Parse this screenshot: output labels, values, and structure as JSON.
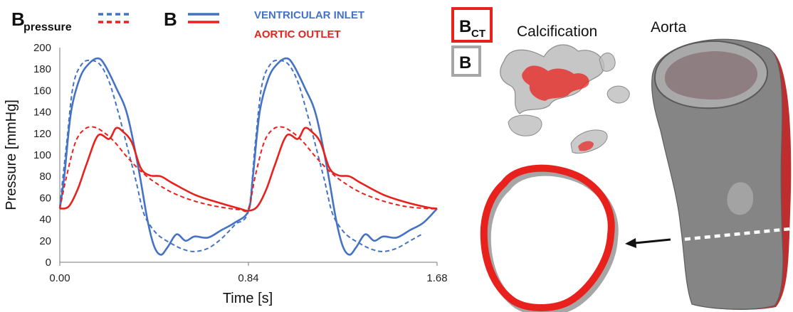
{
  "chart_data": {
    "type": "line",
    "xlabel": "Time [s]",
    "ylabel": "Pressure [mmHg]",
    "xlim": [
      0,
      1.68
    ],
    "ylim": [
      0,
      200
    ],
    "x_ticks": [
      "0.00",
      "0.84",
      "1.68"
    ],
    "y_ticks": [
      0,
      20,
      40,
      60,
      80,
      100,
      120,
      140,
      160,
      180,
      200
    ],
    "grid": false,
    "legend": {
      "b_pressure_main": "B",
      "b_pressure_sub": "pressure",
      "b_label": "B",
      "ventricular_label": "VENTRICULAR INLET",
      "aortic_label": "AORTIC OUTLET"
    },
    "colors": {
      "ventricular": "#4472C4",
      "aortic": "#E8211D"
    },
    "series": [
      {
        "style": "solid",
        "color": "#4472C4",
        "x": [
          0,
          0.02,
          0.05,
          0.09,
          0.13,
          0.17,
          0.2,
          0.25,
          0.3,
          0.35,
          0.39,
          0.42,
          0.45,
          0.48,
          0.52,
          0.56,
          0.6,
          0.66,
          0.72,
          0.78,
          0.84,
          0.86,
          0.89,
          0.93,
          0.97,
          1.01,
          1.04,
          1.09,
          1.14,
          1.19,
          1.23,
          1.26,
          1.29,
          1.32,
          1.36,
          1.4,
          1.44,
          1.5,
          1.56,
          1.62,
          1.68
        ],
        "y": [
          50,
          80,
          140,
          172,
          185,
          190,
          184,
          163,
          138,
          88,
          40,
          15,
          7,
          14,
          26,
          20,
          24,
          23,
          30,
          37,
          48,
          80,
          140,
          172,
          185,
          190,
          184,
          163,
          138,
          88,
          40,
          15,
          7,
          14,
          26,
          20,
          24,
          23,
          30,
          37,
          50
        ]
      },
      {
        "style": "dashed",
        "color": "#4472C4",
        "x": [
          0,
          0.03,
          0.06,
          0.1,
          0.14,
          0.18,
          0.22,
          0.26,
          0.3,
          0.34,
          0.37,
          0.4,
          0.44,
          0.5,
          0.55,
          0.6,
          0.66,
          0.72,
          0.78,
          0.84,
          0.87,
          0.9,
          0.94,
          0.98,
          1.02,
          1.06,
          1.1,
          1.14,
          1.18,
          1.21,
          1.24,
          1.28,
          1.34,
          1.39,
          1.44,
          1.5,
          1.56,
          1.62
        ],
        "y": [
          52,
          110,
          165,
          185,
          188,
          184,
          168,
          140,
          108,
          75,
          48,
          35,
          25,
          17,
          12,
          10,
          13,
          22,
          35,
          48,
          110,
          165,
          185,
          188,
          184,
          168,
          140,
          108,
          75,
          48,
          35,
          25,
          17,
          12,
          10,
          13,
          20,
          27
        ]
      },
      {
        "style": "solid",
        "color": "#E8211D",
        "x": [
          0,
          0.04,
          0.08,
          0.12,
          0.17,
          0.22,
          0.25,
          0.28,
          0.32,
          0.36,
          0.4,
          0.45,
          0.5,
          0.6,
          0.7,
          0.8,
          0.84,
          0.88,
          0.92,
          0.96,
          1.01,
          1.06,
          1.09,
          1.12,
          1.16,
          1.2,
          1.24,
          1.29,
          1.34,
          1.44,
          1.54,
          1.64,
          1.68
        ],
        "y": [
          50,
          52,
          68,
          92,
          118,
          115,
          125,
          122,
          112,
          88,
          81,
          80,
          74,
          63,
          56,
          50,
          48,
          52,
          68,
          92,
          118,
          115,
          125,
          122,
          112,
          88,
          81,
          80,
          74,
          63,
          56,
          51,
          50
        ]
      },
      {
        "style": "dashed",
        "color": "#E8211D",
        "x": [
          0,
          0.03,
          0.07,
          0.11,
          0.15,
          0.19,
          0.24,
          0.3,
          0.36,
          0.42,
          0.5,
          0.6,
          0.7,
          0.8,
          0.84,
          0.87,
          0.91,
          0.95,
          0.99,
          1.03,
          1.08,
          1.14,
          1.2,
          1.26,
          1.34,
          1.44,
          1.54,
          1.64,
          1.68
        ],
        "y": [
          50,
          80,
          112,
          124,
          126,
          122,
          113,
          98,
          85,
          75,
          65,
          57,
          52,
          49,
          50,
          80,
          112,
          124,
          126,
          122,
          113,
          98,
          85,
          75,
          65,
          57,
          52,
          50,
          50
        ]
      }
    ]
  },
  "anatomy": {
    "bct_main": "B",
    "bct_sub": "CT",
    "b_box_label": "B",
    "calcification_label": "Calcification",
    "aorta_label": "Aorta",
    "colors": {
      "red": "#E8211D",
      "gray": "#A6A6A6",
      "aorta": "#858585"
    }
  }
}
